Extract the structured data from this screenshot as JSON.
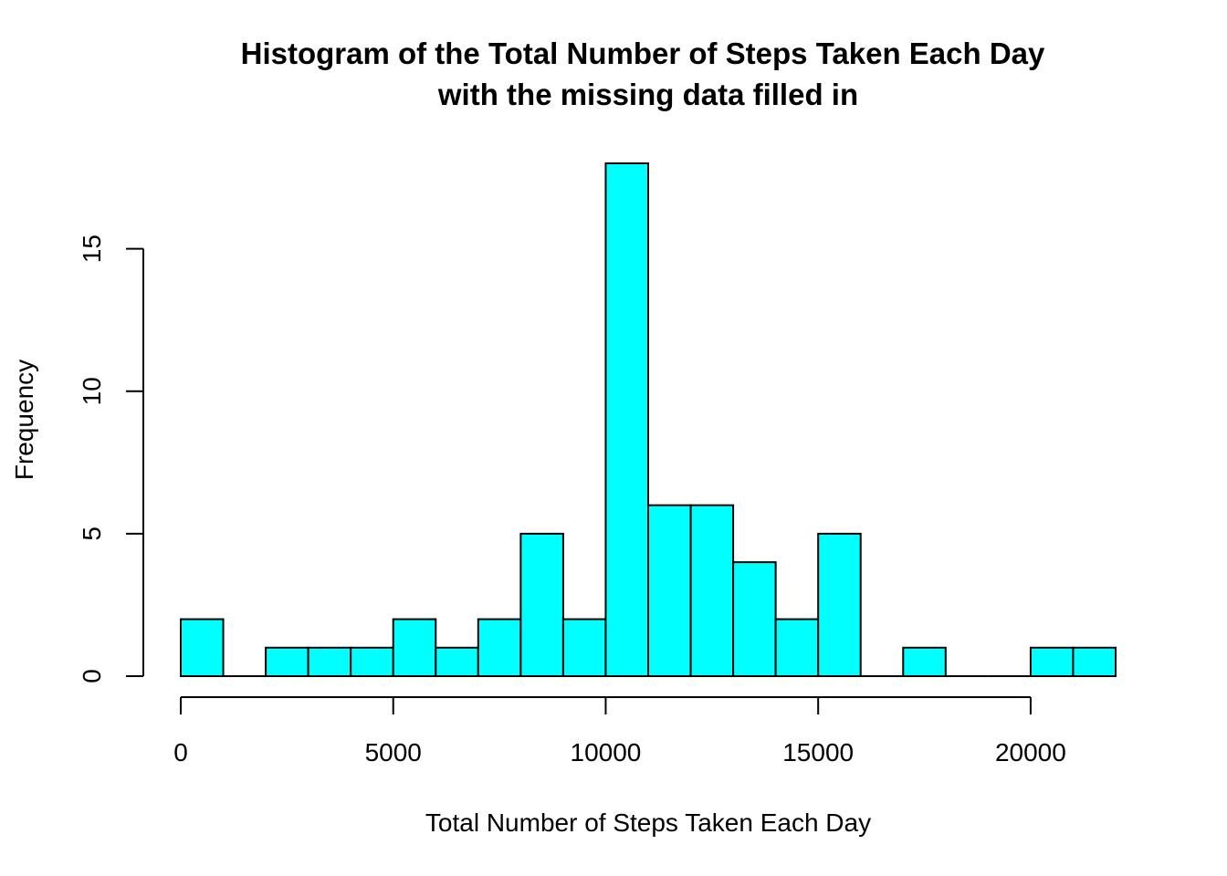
{
  "chart_data": {
    "type": "bar",
    "title_lines": [
      "Histogram of the Total Number of Steps Taken Each Day",
      "with the missing data filled in"
    ],
    "xlabel": "Total Number of Steps Taken Each Day",
    "ylabel": "Frequency",
    "bin_width": 1000,
    "bin_starts": [
      0,
      1000,
      2000,
      3000,
      4000,
      5000,
      6000,
      7000,
      8000,
      9000,
      10000,
      11000,
      12000,
      13000,
      14000,
      15000,
      16000,
      17000,
      18000,
      19000,
      20000,
      21000
    ],
    "values": [
      2,
      0,
      1,
      1,
      1,
      2,
      1,
      2,
      5,
      2,
      18,
      6,
      6,
      4,
      2,
      5,
      0,
      1,
      0,
      0,
      1,
      1
    ],
    "xlim": [
      0,
      22000
    ],
    "ylim": [
      0,
      18
    ],
    "x_ticks": [
      0,
      5000,
      10000,
      15000,
      20000
    ],
    "x_tick_labels": [
      "0",
      "5000",
      "10000",
      "15000",
      "20000"
    ],
    "y_ticks": [
      0,
      5,
      10,
      15
    ],
    "y_tick_labels": [
      "0",
      "5",
      "10",
      "15"
    ],
    "bar_color": "#00FFFF",
    "grid": false,
    "legend": "none"
  }
}
